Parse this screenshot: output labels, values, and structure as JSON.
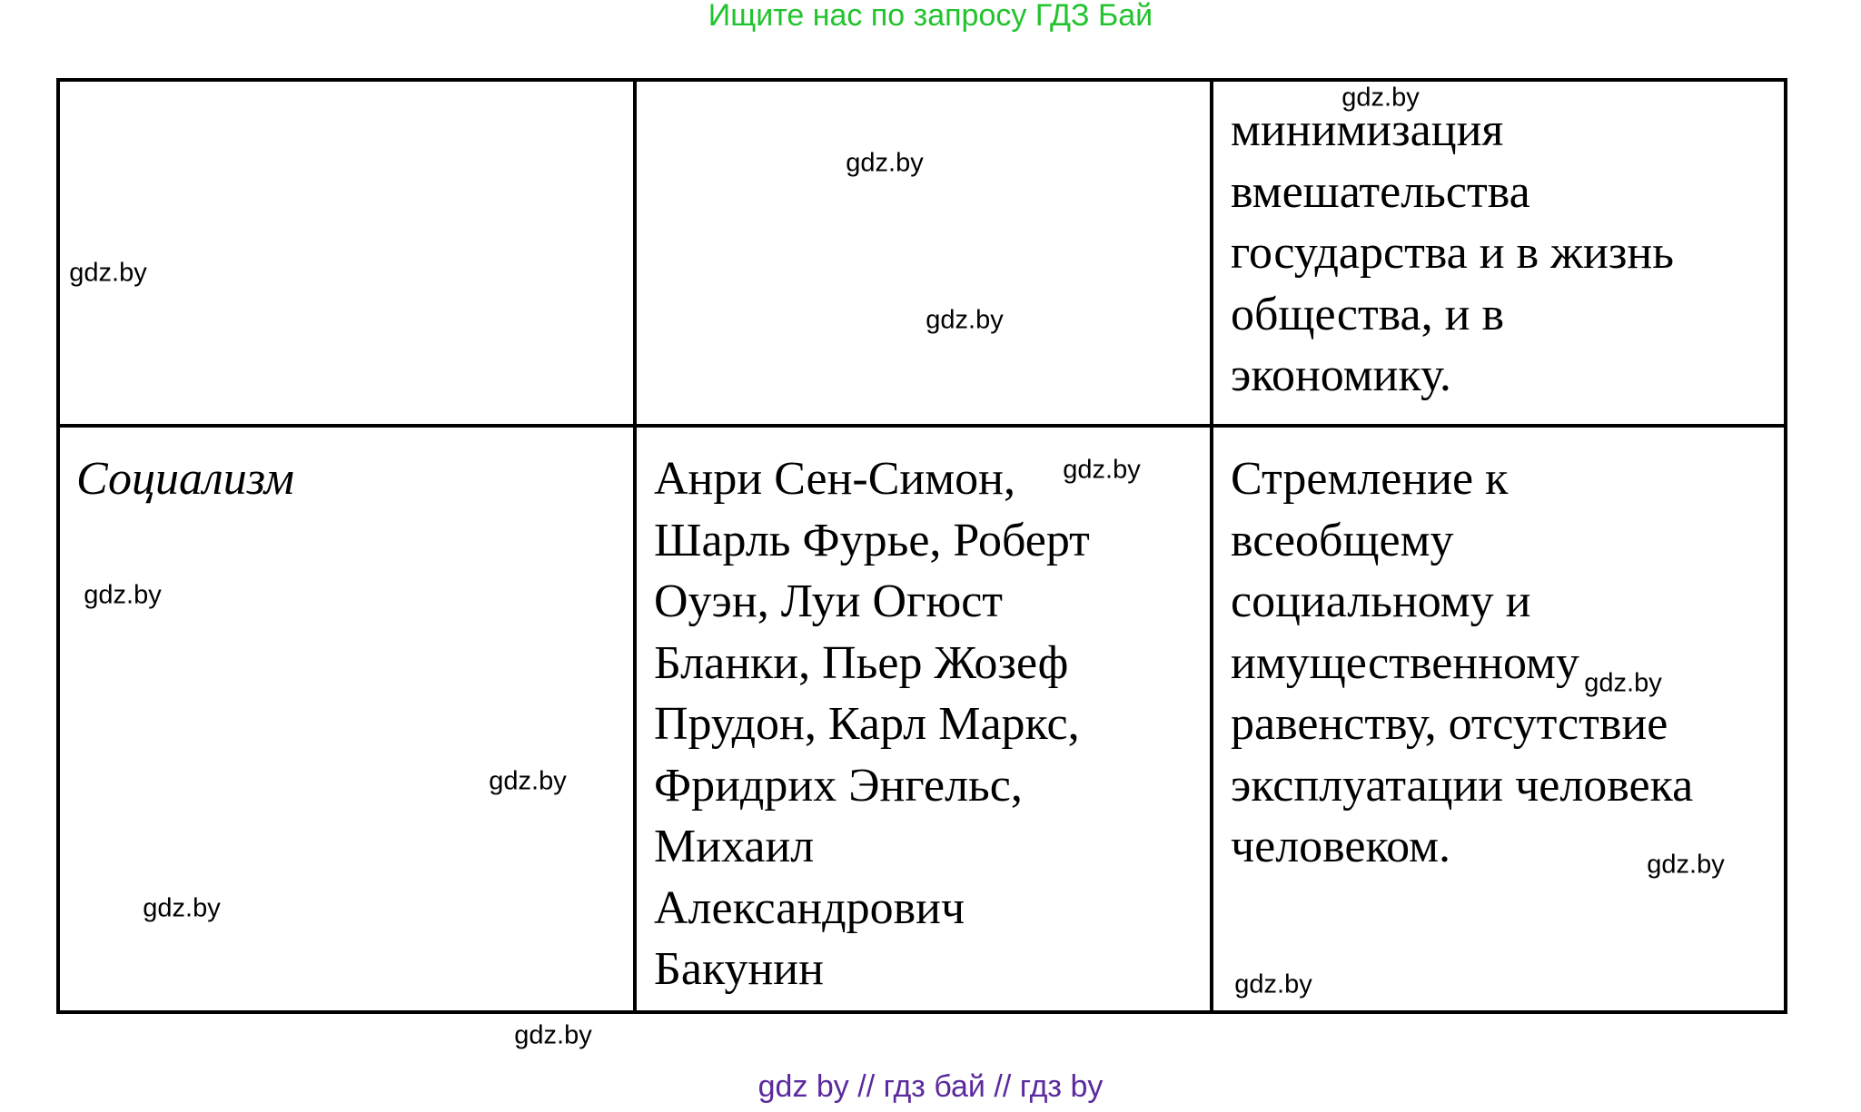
{
  "header": {
    "text": "Ищите нас по запросу ГДЗ Бай"
  },
  "table": {
    "rows": [
      {
        "col1": [],
        "col2": [],
        "col3": [
          "минимизация",
          "вмешательства",
          "государства и в жизнь",
          "общества, и в",
          "экономику."
        ]
      },
      {
        "col1": [
          "Социализм"
        ],
        "col2": [
          "Анри Сен-Симон,",
          "Шарль Фурье, Роберт",
          "Оуэн, Луи Огюст",
          "Бланки, Пьер Жозеф",
          "Прудон, Карл Маркс,",
          "Фридрих Энгельс,",
          "Михаил",
          "Александрович",
          "Бакунин"
        ],
        "col3": [
          "Стремление к",
          "всеобщему",
          "социальному и",
          "имущественному",
          "равенству, отсутствие",
          "эксплуатации человека",
          "человеком."
        ]
      }
    ]
  },
  "watermark": "gdz.by",
  "footer": {
    "text": "gdz by  //  гдз бай  //  гдз by"
  },
  "colors": {
    "header": "#22c32e",
    "footer": "#5b2a9e",
    "border": "#000000"
  }
}
